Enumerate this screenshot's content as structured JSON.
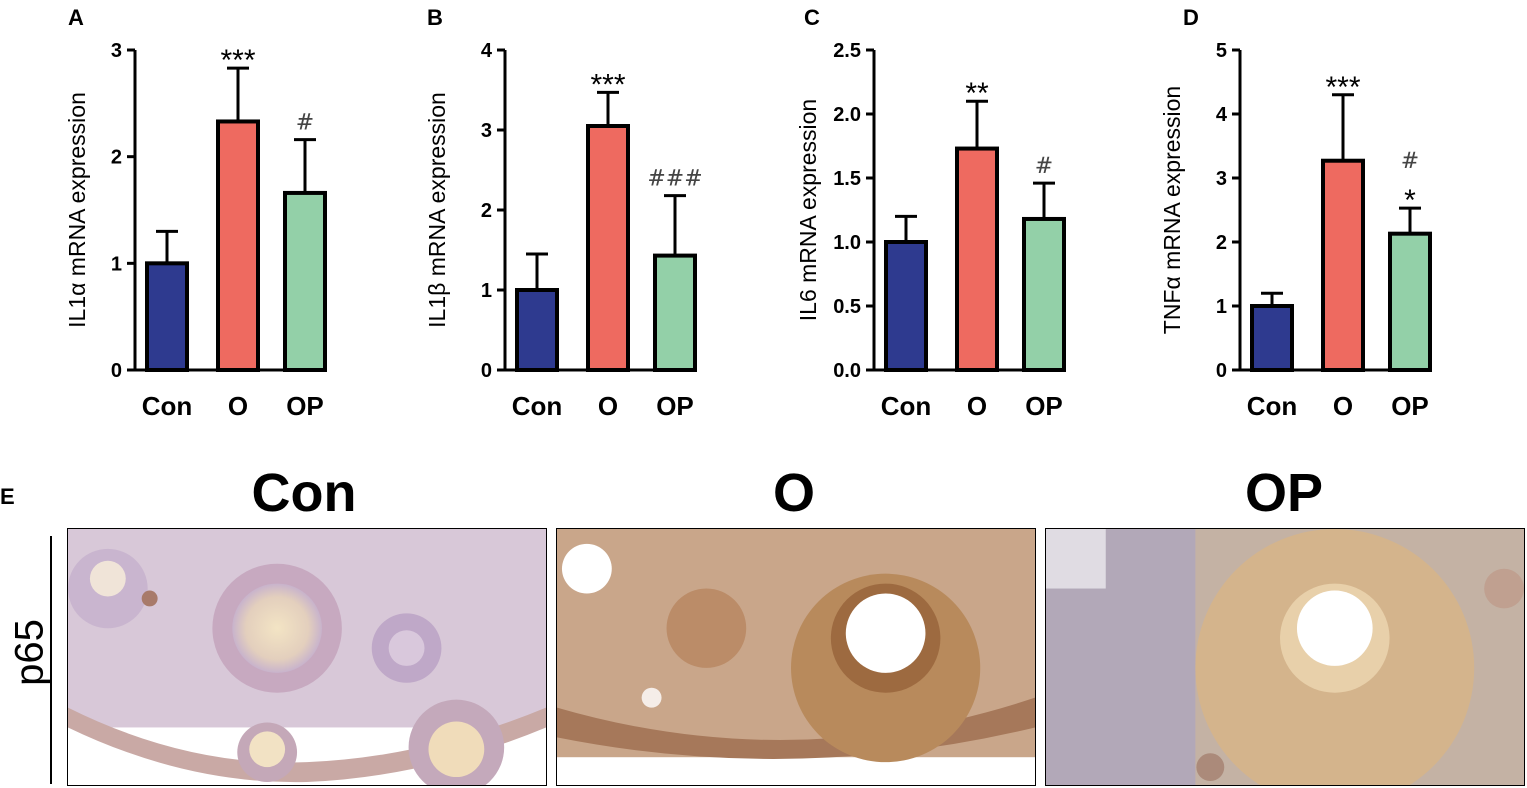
{
  "panels": {
    "a": "A",
    "b": "B",
    "c": "C",
    "d": "D",
    "e": "E"
  },
  "colors": {
    "con": "#2e3a8f",
    "o": "#ee6a60",
    "op": "#93d0a8"
  },
  "chart_data": [
    {
      "type": "bar",
      "panel": "A",
      "ylabel": "IL1α mRNA expression",
      "categories": [
        "Con",
        "O",
        "OP"
      ],
      "values": [
        1.0,
        2.33,
        1.66
      ],
      "errors": [
        0.3,
        0.5,
        0.5
      ],
      "annotations": [
        "",
        "***",
        "#"
      ],
      "ylim": [
        0,
        3
      ],
      "yticks": [
        "0",
        "1",
        "2",
        "3"
      ],
      "ytick_values": [
        0,
        1,
        2,
        3
      ]
    },
    {
      "type": "bar",
      "panel": "B",
      "ylabel": "IL1β mRNA expression",
      "categories": [
        "Con",
        "O",
        "OP"
      ],
      "values": [
        1.0,
        3.05,
        1.43
      ],
      "errors": [
        0.45,
        0.42,
        0.75
      ],
      "annotations": [
        "",
        "***",
        "###"
      ],
      "ylim": [
        0,
        4
      ],
      "yticks": [
        "0",
        "1",
        "2",
        "3",
        "4"
      ],
      "ytick_values": [
        0,
        1,
        2,
        3,
        4
      ]
    },
    {
      "type": "bar",
      "panel": "C",
      "ylabel": "IL6 mRNA expression",
      "categories": [
        "Con",
        "O",
        "OP"
      ],
      "values": [
        1.0,
        1.73,
        1.18
      ],
      "errors": [
        0.2,
        0.37,
        0.28
      ],
      "annotations": [
        "",
        "**",
        "#"
      ],
      "ylim": [
        0,
        2.5
      ],
      "yticks": [
        "0.0",
        "0.5",
        "1.0",
        "1.5",
        "2.0",
        "2.5"
      ],
      "ytick_values": [
        0,
        0.5,
        1.0,
        1.5,
        2.0,
        2.5
      ]
    },
    {
      "type": "bar",
      "panel": "D",
      "ylabel": "TNFα mRNA expression",
      "categories": [
        "Con",
        "O",
        "OP"
      ],
      "values": [
        1.0,
        3.27,
        2.13
      ],
      "errors": [
        0.2,
        1.03,
        0.4
      ],
      "annotations": [
        "",
        "***",
        "#\n*"
      ],
      "ylim": [
        0,
        5
      ],
      "yticks": [
        "0",
        "1",
        "2",
        "3",
        "4",
        "5"
      ],
      "ytick_values": [
        0,
        1,
        2,
        3,
        4,
        5
      ]
    }
  ],
  "micrographs": {
    "titles": [
      "Con",
      "O",
      "OP"
    ],
    "row_label": "p65"
  }
}
